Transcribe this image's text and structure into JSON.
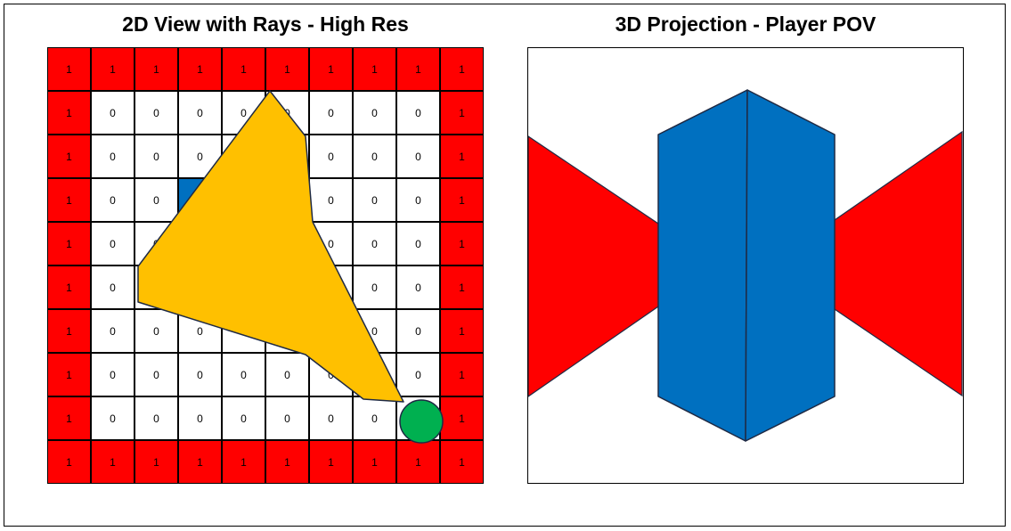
{
  "titles": {
    "left": "2D View with Rays - High Res",
    "right": "3D Projection - Player POV"
  },
  "colors": {
    "wall": "#ff0000",
    "pillar": "#0070c0",
    "ray": "#ffc000",
    "player": "#00b050",
    "floor": "#ffffff"
  },
  "map": [
    [
      "1",
      "1",
      "1",
      "1",
      "1",
      "1",
      "1",
      "1",
      "1",
      "1"
    ],
    [
      "1",
      "0",
      "0",
      "0",
      "0",
      "0",
      "0",
      "0",
      "0",
      "1"
    ],
    [
      "1",
      "0",
      "0",
      "0",
      "0",
      "0",
      "0",
      "0",
      "0",
      "1"
    ],
    [
      "1",
      "0",
      "0",
      "1",
      "1",
      "0",
      "0",
      "0",
      "0",
      "1"
    ],
    [
      "1",
      "0",
      "0",
      "1",
      "1",
      "0",
      "0",
      "0",
      "0",
      "1"
    ],
    [
      "1",
      "0",
      "0",
      "0",
      "0",
      "0",
      "0",
      "0",
      "0",
      "1"
    ],
    [
      "1",
      "0",
      "0",
      "0",
      "0",
      "0",
      "0",
      "0",
      "0",
      "1"
    ],
    [
      "1",
      "0",
      "0",
      "0",
      "0",
      "0",
      "0",
      "0",
      "0",
      "1"
    ],
    [
      "1",
      "0",
      "0",
      "0",
      "0",
      "0",
      "0",
      "0",
      "0",
      "1"
    ],
    [
      "1",
      "1",
      "1",
      "1",
      "1",
      "1",
      "1",
      "1",
      "1",
      "1"
    ]
  ],
  "player": {
    "row": 7,
    "col": 7
  }
}
